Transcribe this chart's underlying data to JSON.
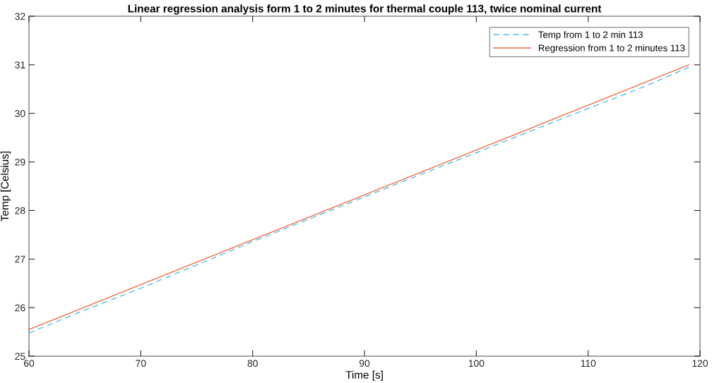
{
  "chart_data": {
    "type": "line",
    "title": "Linear regression analysis form 1 to 2 minutes for thermal couple 113, twice nominal current",
    "xlabel": "Time [s]",
    "ylabel": "Temp [Celsius]",
    "xlim": [
      60,
      120
    ],
    "xticks": [
      60,
      70,
      80,
      90,
      100,
      110,
      120
    ],
    "ylim": [
      25,
      32
    ],
    "yticks": [
      25,
      26,
      27,
      28,
      29,
      30,
      31,
      32
    ],
    "grid": false,
    "legend": "top right",
    "series": [
      {
        "name": "Temp from 1 to 2 min 113",
        "color": "#4dbeee",
        "line_style": "dashed",
        "x": [
          60,
          65,
          70,
          75,
          80,
          85,
          90,
          95,
          100,
          105,
          110,
          115,
          119
        ],
        "values": [
          25.48,
          25.95,
          26.4,
          26.88,
          27.36,
          27.82,
          28.28,
          28.74,
          29.19,
          29.65,
          30.1,
          30.55,
          30.95
        ]
      },
      {
        "name": "Regression from 1 to 2 minutes 113",
        "color": "#f26b43",
        "line_style": "solid",
        "x": [
          60,
          119
        ],
        "values": [
          25.55,
          31.0
        ]
      }
    ]
  }
}
